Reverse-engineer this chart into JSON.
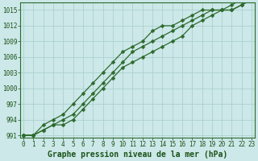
{
  "xlabel": "Graphe pression niveau de la mer (hPa)",
  "x": [
    0,
    1,
    2,
    3,
    4,
    5,
    6,
    7,
    8,
    9,
    10,
    11,
    12,
    13,
    14,
    15,
    16,
    17,
    18,
    19,
    20,
    21,
    22,
    23
  ],
  "line1": [
    991,
    991,
    993,
    994,
    995,
    997,
    999,
    1001,
    1003,
    1005,
    1007,
    1008,
    1009,
    1011,
    1012,
    1012,
    1013,
    1014,
    1015,
    1015,
    1015,
    1016,
    1017,
    1017
  ],
  "line2": [
    991,
    991,
    992,
    993,
    994,
    995,
    997,
    999,
    1001,
    1003,
    1005,
    1007,
    1008,
    1009,
    1010,
    1011,
    1012,
    1013,
    1014,
    1015,
    1015,
    1015,
    1016,
    1017
  ],
  "line3": [
    991,
    991,
    992,
    993,
    993,
    994,
    996,
    998,
    1000,
    1002,
    1004,
    1005,
    1006,
    1007,
    1008,
    1009,
    1010,
    1012,
    1013,
    1014,
    1015,
    1015,
    1016,
    1017
  ],
  "ylim": [
    990.5,
    1016.5
  ],
  "yticks": [
    991,
    994,
    997,
    1000,
    1003,
    1006,
    1009,
    1012,
    1015
  ],
  "xticks": [
    0,
    1,
    2,
    3,
    4,
    5,
    6,
    7,
    8,
    9,
    10,
    11,
    12,
    13,
    14,
    15,
    16,
    17,
    18,
    19,
    20,
    21,
    22,
    23
  ],
  "line_color": "#2d6a2d",
  "bg_color": "#cce8e8",
  "grid_color": "#a8cccc",
  "marker": "D",
  "marker_size": 2.5,
  "font_color": "#1a5218",
  "xlabel_fontsize": 7,
  "tick_fontsize": 5.5
}
